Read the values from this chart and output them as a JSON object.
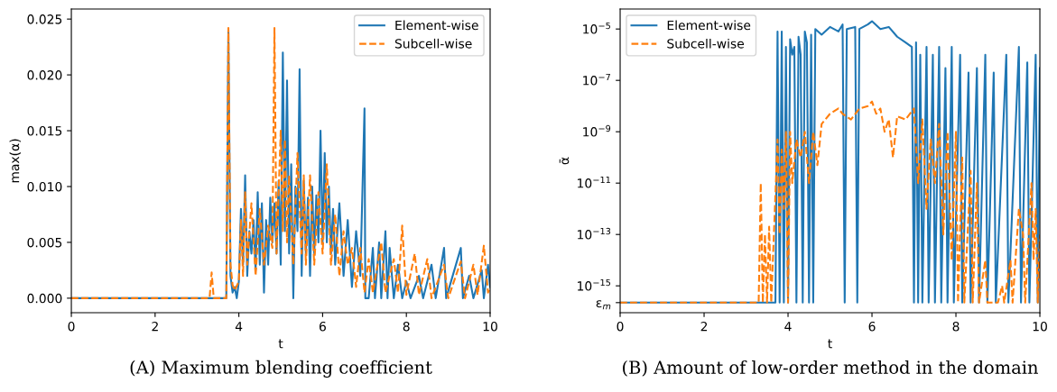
{
  "chart_data": [
    {
      "type": "line",
      "xlabel": "t",
      "ylabel": "max(α)",
      "xlim": [
        0,
        10
      ],
      "xticks": [
        0,
        2,
        4,
        6,
        8,
        10
      ],
      "ylim": [
        -0.0013,
        0.0259
      ],
      "yticks": [
        {
          "value": 0,
          "label": "0.000"
        },
        {
          "value": 0.005,
          "label": "0.005"
        },
        {
          "value": 0.01,
          "label": "0.010"
        },
        {
          "value": 0.015,
          "label": "0.015"
        },
        {
          "value": 0.02,
          "label": "0.020"
        },
        {
          "value": 0.025,
          "label": "0.025"
        }
      ],
      "legend": "top right",
      "grid": false,
      "annotations": [
        "(A) Maximum blending coefficient"
      ],
      "series": [
        {
          "name": "Element-wise",
          "color": "#1f77b4",
          "line_style": "solid",
          "x": [
            0,
            3.65,
            3.7,
            3.75,
            3.8,
            3.85,
            3.9,
            3.95,
            4.0,
            4.05,
            4.1,
            4.15,
            4.2,
            4.25,
            4.3,
            4.35,
            4.4,
            4.45,
            4.5,
            4.55,
            4.6,
            4.65,
            4.7,
            4.75,
            4.8,
            4.85,
            4.9,
            4.95,
            5.0,
            5.05,
            5.1,
            5.15,
            5.2,
            5.25,
            5.3,
            5.35,
            5.4,
            5.45,
            5.5,
            5.55,
            5.6,
            5.65,
            5.7,
            5.75,
            5.8,
            5.85,
            5.9,
            5.95,
            6.0,
            6.05,
            6.1,
            6.15,
            6.2,
            6.25,
            6.3,
            6.4,
            6.5,
            6.6,
            6.7,
            6.8,
            6.9,
            7.0,
            7.02,
            7.1,
            7.2,
            7.25,
            7.35,
            7.4,
            7.5,
            7.55,
            7.6,
            7.7,
            7.8,
            7.9,
            8.0,
            8.1,
            8.3,
            8.4,
            8.6,
            8.7,
            8.9,
            8.95,
            9.3,
            9.35,
            9.5,
            9.6,
            9.8,
            9.85,
            9.95,
            10.0
          ],
          "values": [
            0,
            0,
            0,
            0.024,
            0.002,
            0.0005,
            0.001,
            0,
            0.0015,
            0.008,
            0.003,
            0.011,
            0.002,
            0.006,
            0.004,
            0.007,
            0.0025,
            0.0095,
            0.003,
            0.0085,
            0.0005,
            0.007,
            0.003,
            0.009,
            0.005,
            0.0085,
            0.004,
            0.0105,
            0.003,
            0.022,
            0.006,
            0.0195,
            0.004,
            0.012,
            0,
            0.01,
            0.006,
            0.0205,
            0.002,
            0.0105,
            0.004,
            0.009,
            0.002,
            0.01,
            0.004,
            0.0092,
            0.005,
            0.015,
            0.005,
            0.013,
            0.005,
            0.01,
            0.004,
            0.008,
            0.003,
            0.0085,
            0.002,
            0.007,
            0.001,
            0.006,
            0.002,
            0.017,
            0,
            0,
            0.0045,
            0,
            0.005,
            0,
            0.006,
            0,
            0.0045,
            0,
            0.003,
            0,
            0.0015,
            0,
            0.002,
            0,
            0.003,
            0,
            0.0045,
            0,
            0.0045,
            0,
            0.002,
            0,
            0.0025,
            0,
            0.003,
            0.001
          ]
        },
        {
          "name": "Subcell-wise",
          "color": "#ff7f0e",
          "line_style": "dashed",
          "x": [
            0,
            3.3,
            3.35,
            3.4,
            3.7,
            3.75,
            3.8,
            3.85,
            3.9,
            4.0,
            4.05,
            4.1,
            4.15,
            4.2,
            4.3,
            4.4,
            4.5,
            4.6,
            4.7,
            4.8,
            4.85,
            4.9,
            5.0,
            5.05,
            5.1,
            5.15,
            5.2,
            5.3,
            5.4,
            5.5,
            5.55,
            5.6,
            5.7,
            5.8,
            5.9,
            6.0,
            6.1,
            6.2,
            6.3,
            6.4,
            6.5,
            6.6,
            6.7,
            6.8,
            6.9,
            7.0,
            7.1,
            7.2,
            7.4,
            7.5,
            7.7,
            7.8,
            7.9,
            8.0,
            8.2,
            8.3,
            8.5,
            8.6,
            8.9,
            9.0,
            9.3,
            9.4,
            9.6,
            9.7,
            9.85,
            9.95,
            10.0
          ],
          "values": [
            0,
            0,
            0.0023,
            0,
            0,
            0.0242,
            0.003,
            0.0012,
            0.0007,
            0.0015,
            0.007,
            0.002,
            0.0095,
            0.003,
            0.0085,
            0.002,
            0.008,
            0.003,
            0.0065,
            0.0045,
            0.0242,
            0.004,
            0.015,
            0.006,
            0.0142,
            0.005,
            0.011,
            0.003,
            0.013,
            0.004,
            0.011,
            0.003,
            0.011,
            0.003,
            0.0095,
            0.004,
            0.012,
            0.003,
            0.0075,
            0.002,
            0.006,
            0.003,
            0.0045,
            0.001,
            0.0045,
            0.0005,
            0.0035,
            0.0005,
            0.005,
            0.0005,
            0.0035,
            0.0005,
            0.0065,
            0.0003,
            0.004,
            0.0003,
            0.0035,
            0,
            0.003,
            0,
            0.0033,
            0,
            0.003,
            0.0003,
            0.0047,
            0.0005,
            0.001
          ]
        }
      ]
    },
    {
      "type": "line",
      "xlabel": "t",
      "ylabel": "ᾱ",
      "log": "y",
      "xlim": [
        0,
        10
      ],
      "xticks": [
        0,
        2,
        4,
        6,
        8,
        10
      ],
      "ylim": [
        9e-17,
        6e-05
      ],
      "yticks": [
        {
          "value": 2.22e-16,
          "label": "ε$_{m}$"
        },
        {
          "value": 1e-15,
          "label": "10$^{−15}$"
        },
        {
          "value": 1e-13,
          "label": "10$^{−13}$"
        },
        {
          "value": 1e-11,
          "label": "10$^{−11}$"
        },
        {
          "value": 1e-09,
          "label": "10$^{−9}$"
        },
        {
          "value": 1e-07,
          "label": "10$^{−7}$"
        },
        {
          "value": 1e-05,
          "label": "10$^{−5}$"
        }
      ],
      "legend": "top left",
      "grid": false,
      "annotations": [
        "(B) Amount of low-order method in the domain"
      ],
      "series": [
        {
          "name": "Element-wise",
          "color": "#1f77b4",
          "line_style": "solid",
          "x": [
            0,
            3.7,
            3.75,
            3.8,
            3.85,
            3.9,
            3.95,
            4.0,
            4.05,
            4.1,
            4.15,
            4.2,
            4.25,
            4.3,
            4.35,
            4.4,
            4.45,
            4.5,
            4.55,
            4.6,
            4.65,
            4.8,
            5.0,
            5.2,
            5.3,
            5.35,
            5.4,
            5.6,
            5.65,
            5.7,
            5.9,
            6.0,
            6.2,
            6.4,
            6.6,
            6.8,
            6.95,
            7.0,
            7.05,
            7.1,
            7.15,
            7.2,
            7.3,
            7.35,
            7.45,
            7.5,
            7.6,
            7.65,
            7.75,
            7.8,
            7.9,
            7.95,
            8.1,
            8.15,
            8.3,
            8.35,
            8.5,
            8.55,
            8.7,
            8.75,
            8.9,
            8.95,
            9.2,
            9.25,
            9.5,
            9.55,
            9.7,
            9.75,
            9.9,
            9.95,
            10
          ],
          "values": [
            2.22e-16,
            2.22e-16,
            8e-06,
            2.22e-16,
            8e-06,
            2.22e-16,
            2e-06,
            2.22e-16,
            4e-06,
            1e-06,
            2e-06,
            2.22e-16,
            5e-06,
            1e-06,
            2.22e-16,
            8e-06,
            3e-06,
            2.22e-16,
            6e-06,
            2.22e-16,
            1e-05,
            6e-06,
            1.2e-05,
            8e-06,
            1.5e-05,
            2.22e-16,
            1e-05,
            1.2e-05,
            2.22e-16,
            1e-05,
            1.5e-05,
            2e-05,
            1e-05,
            1.2e-05,
            5e-06,
            3e-06,
            2e-06,
            2.22e-16,
            3e-06,
            2.22e-16,
            1e-06,
            2.22e-16,
            2e-06,
            2.22e-16,
            1e-06,
            2.22e-16,
            2e-06,
            2.22e-16,
            3e-07,
            2.22e-16,
            2e-06,
            2.22e-16,
            1e-06,
            2.22e-16,
            2e-07,
            2.22e-16,
            3e-07,
            2.22e-16,
            1e-06,
            2.22e-16,
            2e-07,
            2.22e-16,
            1e-06,
            2.22e-16,
            2e-06,
            2.22e-16,
            5e-07,
            2.22e-16,
            1e-06,
            2.22e-16,
            3e-07
          ]
        },
        {
          "name": "Subcell-wise",
          "color": "#ff7f0e",
          "line_style": "dashed",
          "x": [
            0,
            3.3,
            3.35,
            3.4,
            3.45,
            3.5,
            3.55,
            3.6,
            3.75,
            3.8,
            3.85,
            3.9,
            3.95,
            4.0,
            4.05,
            4.1,
            4.2,
            4.3,
            4.4,
            4.5,
            4.6,
            4.7,
            4.8,
            5.0,
            5.2,
            5.3,
            5.5,
            5.7,
            5.9,
            6.0,
            6.1,
            6.2,
            6.3,
            6.4,
            6.5,
            6.6,
            6.8,
            7.0,
            7.1,
            7.2,
            7.3,
            7.4,
            7.5,
            7.6,
            7.7,
            7.8,
            7.9,
            8.0,
            8.05,
            8.15,
            8.2,
            8.35,
            8.4,
            8.5,
            8.55,
            8.7,
            8.75,
            9.0,
            9.1,
            9.15,
            9.3,
            9.35,
            9.5,
            9.6,
            9.65,
            9.8,
            9.85,
            9.9,
            9.95,
            10
          ],
          "values": [
            2.22e-16,
            2.22e-16,
            1e-11,
            2.22e-16,
            1e-13,
            2.22e-16,
            2e-13,
            2.22e-16,
            5e-10,
            1e-13,
            2e-10,
            1e-12,
            1e-09,
            2.22e-16,
            1e-09,
            1e-11,
            5e-10,
            1e-10,
            1e-09,
            1e-11,
            1e-09,
            5e-11,
            2e-09,
            5e-09,
            8e-09,
            5e-09,
            3e-09,
            8e-09,
            1e-08,
            1.5e-08,
            5e-09,
            8e-09,
            1e-09,
            3e-09,
            1e-10,
            4e-09,
            3e-09,
            8e-09,
            1e-11,
            3e-09,
            1e-12,
            5e-10,
            1e-11,
            2e-09,
            1e-13,
            1e-09,
            1e-14,
            1e-09,
            2.22e-16,
            1e-10,
            2.22e-16,
            3e-11,
            2.22e-16,
            1e-11,
            2.22e-16,
            1e-14,
            2.22e-16,
            2.22e-16,
            1e-15,
            2.22e-16,
            1e-14,
            2.22e-16,
            1e-12,
            1e-13,
            2.22e-16,
            1e-11,
            1e-14,
            1e-12,
            2.22e-16,
            1e-13
          ]
        }
      ]
    }
  ]
}
